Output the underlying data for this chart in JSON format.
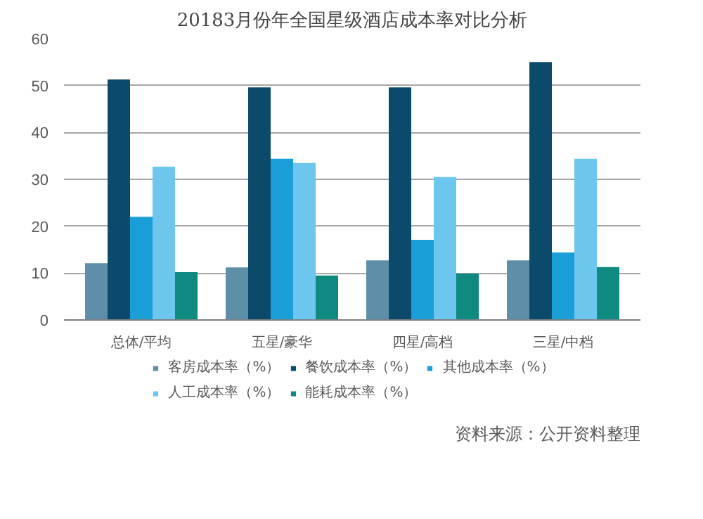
{
  "chart_data": {
    "type": "bar",
    "title": "20183月份年全国星级酒店成本率对比分析",
    "categories": [
      "总体/平均",
      "五星/豪华",
      "四星/高档",
      "三星/中档"
    ],
    "series": [
      {
        "name": "客房成本率（%）",
        "color": "#5f8fa8",
        "values": [
          12.1,
          11.2,
          12.7,
          12.7
        ]
      },
      {
        "name": "餐饮成本率（%）",
        "color": "#0b4a6a",
        "values": [
          51.3,
          49.6,
          49.6,
          55.0
        ]
      },
      {
        "name": "其他成本率（%）",
        "color": "#1a9ed8",
        "values": [
          22.0,
          34.4,
          17.1,
          14.4
        ]
      },
      {
        "name": "人工成本率（%）",
        "color": "#6cc6ee",
        "values": [
          32.7,
          33.5,
          30.5,
          34.4
        ]
      },
      {
        "name": "能耗成本率（%）",
        "color": "#0f8a80",
        "values": [
          10.2,
          9.5,
          9.9,
          11.3
        ]
      }
    ],
    "ylim": [
      0,
      60
    ],
    "yticks": [
      0,
      10,
      20,
      30,
      40,
      50,
      60
    ],
    "grid": "y",
    "legend": "bottom",
    "annotations": [
      "资料来源：公开资料整理"
    ]
  }
}
